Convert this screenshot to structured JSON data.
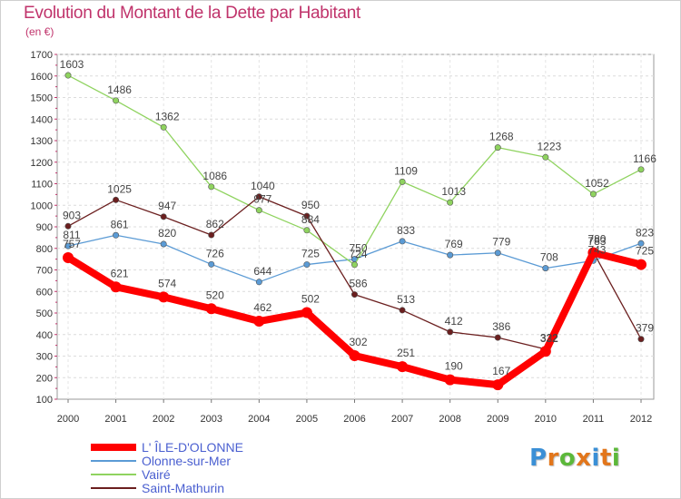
{
  "header": {
    "title": "Evolution du Montant de la Dette par Habitant",
    "unit": "(en €)"
  },
  "logo": {
    "letters": [
      "P",
      "r",
      "o",
      "x",
      "i",
      "t",
      "i"
    ],
    "colors": [
      "#3a8fd6",
      "#e2761b",
      "#5cb83a",
      "#e2761b",
      "#3a8fd6",
      "#e2761b",
      "#5cb83a"
    ]
  },
  "chart_data": {
    "type": "line",
    "title": "Evolution du Montant de la Dette par Habitant",
    "ylabel": "(en €)",
    "x": [
      "2000",
      "2001",
      "2002",
      "2003",
      "2004",
      "2005",
      "2006",
      "2007",
      "2008",
      "2009",
      "2010",
      "2011",
      "2012"
    ],
    "ylim": [
      100,
      1700
    ],
    "yticks": [
      100,
      200,
      300,
      400,
      500,
      600,
      700,
      800,
      900,
      1000,
      1100,
      1200,
      1300,
      1400,
      1500,
      1600,
      1700
    ],
    "grid": true,
    "legend_position": "bottom-left",
    "series": [
      {
        "name": "L' ÎLE-D'OLONNE",
        "color": "#ff0000",
        "emphasis": true,
        "values": [
          757,
          621,
          574,
          520,
          462,
          502,
          302,
          251,
          190,
          167,
          322,
          780,
          725
        ],
        "labels": [
          "757",
          "621",
          "574",
          "520",
          "462",
          "502",
          "302",
          "251",
          "190",
          "167",
          "322",
          "780",
          "725"
        ]
      },
      {
        "name": "Olonne-sur-Mer",
        "color": "#5b9bd5",
        "emphasis": false,
        "values": [
          811,
          861,
          820,
          726,
          644,
          725,
          750,
          833,
          769,
          779,
          708,
          743,
          823
        ],
        "labels": [
          "811",
          "861",
          "820",
          "726",
          "644",
          "725",
          "750",
          "833",
          "769",
          "779",
          "708",
          "743",
          "823"
        ]
      },
      {
        "name": "Vairé",
        "color": "#8fd35f",
        "emphasis": false,
        "values": [
          1603,
          1486,
          1362,
          1086,
          977,
          884,
          724,
          1109,
          1013,
          1268,
          1223,
          1052,
          1166
        ],
        "labels": [
          "1603",
          "1486",
          "1362",
          "1086",
          "977",
          "884",
          "724",
          "1109",
          "1013",
          "1268",
          "1223",
          "1052",
          "1166"
        ]
      },
      {
        "name": "Saint-Mathurin",
        "color": "#6b1f1f",
        "emphasis": false,
        "values": [
          903,
          1025,
          947,
          862,
          1040,
          950,
          586,
          513,
          412,
          386,
          332,
          783,
          379
        ],
        "labels": [
          "903",
          "1025",
          "947",
          "862",
          "1040",
          "950",
          "586",
          "513",
          "412",
          "386",
          "332",
          "783",
          "379"
        ]
      }
    ]
  }
}
